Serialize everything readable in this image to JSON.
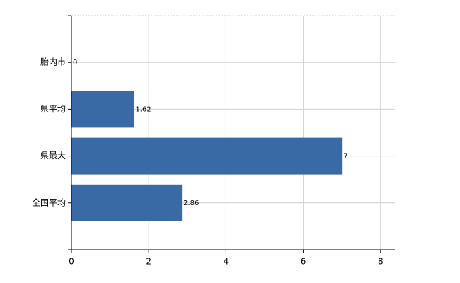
{
  "chart_data": {
    "type": "hbar",
    "categories": [
      "胎内市",
      "県平均",
      "県最大",
      "全国平均"
    ],
    "values": [
      0,
      1.62,
      7,
      2.86
    ],
    "color": "#3a6aa5",
    "xlim": [
      0,
      8.37
    ],
    "xticks": [
      0,
      2,
      4,
      6,
      8
    ],
    "grid": true
  }
}
